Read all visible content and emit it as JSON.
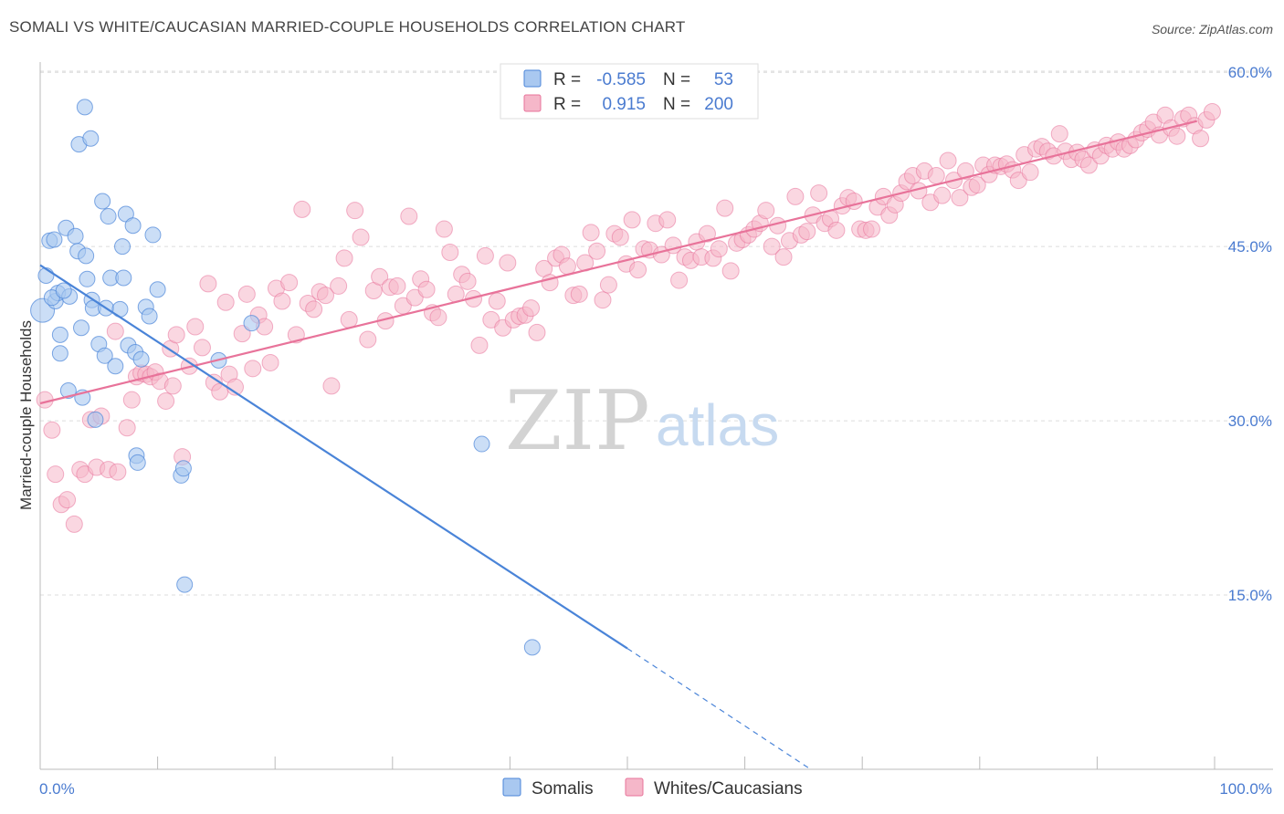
{
  "title": "SOMALI VS WHITE/CAUCASIAN MARRIED-COUPLE HOUSEHOLDS CORRELATION CHART",
  "source": "Source: ZipAtlas.com",
  "watermark": {
    "zip": "ZIP",
    "atlas": "atlas"
  },
  "legend_top": [
    {
      "r_label": "R = ",
      "r_value": "-0.585",
      "n_label": "N = ",
      "n_value": "53",
      "color": "#a9c8f0"
    },
    {
      "r_label": "R = ",
      "r_value": "0.915",
      "n_label": "N = ",
      "n_value": "200",
      "color": "#f5b7c9"
    }
  ],
  "legend_bottom": [
    {
      "label": "Somalis",
      "color": "#a9c8f0"
    },
    {
      "label": "Whites/Caucasians",
      "color": "#f5b7c9"
    }
  ],
  "chart_data": {
    "type": "scatter",
    "title": "SOMALI VS WHITE/CAUCASIAN MARRIED-COUPLE HOUSEHOLDS CORRELATION CHART",
    "xlabel": "",
    "ylabel": "Married-couple Households",
    "x_tick_labels": [
      "0.0%",
      "100.0%"
    ],
    "y_tick_labels": [
      "15.0%",
      "30.0%",
      "45.0%",
      "60.0%"
    ],
    "y_ticks": [
      15,
      30,
      45,
      60
    ],
    "xlim": [
      0,
      100
    ],
    "ylim": [
      0,
      62
    ],
    "grid": "horizontal dashed",
    "legend_placement": "top-center and bottom",
    "colors": {
      "somalis": "#4a84d8",
      "whites": "#e8739a"
    },
    "series": [
      {
        "name": "Somalis",
        "r": -0.585,
        "n": 53,
        "trend": {
          "x": [
            0,
            50
          ],
          "y": [
            43.4,
            10.4
          ],
          "dashed_extension_to": [
            65.6,
            0
          ]
        },
        "points": [
          [
            0.2,
            39.5
          ],
          [
            0.5,
            42.5
          ],
          [
            0.8,
            45.5
          ],
          [
            1.2,
            45.6
          ],
          [
            1.3,
            40.3
          ],
          [
            1.5,
            41.0
          ],
          [
            1.7,
            37.4
          ],
          [
            1.7,
            35.8
          ],
          [
            2.2,
            46.6
          ],
          [
            2.4,
            32.6
          ],
          [
            2.5,
            40.7
          ],
          [
            3.0,
            45.9
          ],
          [
            3.2,
            44.6
          ],
          [
            3.3,
            53.8
          ],
          [
            3.5,
            38.0
          ],
          [
            3.8,
            57.0
          ],
          [
            3.6,
            32.0
          ],
          [
            4.0,
            42.2
          ],
          [
            4.3,
            54.3
          ],
          [
            4.4,
            40.4
          ],
          [
            4.5,
            39.7
          ],
          [
            4.7,
            30.1
          ],
          [
            5.0,
            36.6
          ],
          [
            5.3,
            48.9
          ],
          [
            5.5,
            35.6
          ],
          [
            5.6,
            39.7
          ],
          [
            5.8,
            47.6
          ],
          [
            6.0,
            42.3
          ],
          [
            6.4,
            34.7
          ],
          [
            7.0,
            45.0
          ],
          [
            7.1,
            42.3
          ],
          [
            7.3,
            47.8
          ],
          [
            7.5,
            36.5
          ],
          [
            7.9,
            46.8
          ],
          [
            8.1,
            35.9
          ],
          [
            8.2,
            27.0
          ],
          [
            8.3,
            26.4
          ],
          [
            8.6,
            35.3
          ],
          [
            9.0,
            39.8
          ],
          [
            9.3,
            39.0
          ],
          [
            9.6,
            46.0
          ],
          [
            10.0,
            41.3
          ],
          [
            12.0,
            25.3
          ],
          [
            12.2,
            25.9
          ],
          [
            12.3,
            15.9
          ],
          [
            15.2,
            35.2
          ],
          [
            18.0,
            38.4
          ],
          [
            37.6,
            28.0
          ],
          [
            41.9,
            10.5
          ],
          [
            1.0,
            40.6
          ],
          [
            2.0,
            41.2
          ],
          [
            6.8,
            39.6
          ],
          [
            3.9,
            44.2
          ]
        ]
      },
      {
        "name": "Whites/Caucasians",
        "r": 0.915,
        "n": 200,
        "trend": {
          "x": [
            0,
            98.5
          ],
          "y": [
            31.5,
            55.8
          ]
        },
        "points": [
          [
            0.4,
            31.8
          ],
          [
            1.0,
            29.2
          ],
          [
            1.3,
            25.4
          ],
          [
            1.8,
            22.8
          ],
          [
            2.3,
            23.2
          ],
          [
            2.9,
            21.1
          ],
          [
            3.4,
            25.8
          ],
          [
            3.8,
            25.4
          ],
          [
            4.3,
            30.1
          ],
          [
            4.8,
            26.0
          ],
          [
            5.2,
            30.4
          ],
          [
            5.8,
            25.8
          ],
          [
            6.4,
            37.7
          ],
          [
            6.6,
            25.6
          ],
          [
            7.4,
            29.4
          ],
          [
            7.8,
            31.8
          ],
          [
            8.2,
            33.8
          ],
          [
            8.6,
            34.1
          ],
          [
            9.0,
            34.0
          ],
          [
            9.4,
            33.8
          ],
          [
            9.8,
            34.2
          ],
          [
            10.2,
            33.4
          ],
          [
            10.7,
            31.7
          ],
          [
            11.1,
            36.2
          ],
          [
            11.3,
            33.0
          ],
          [
            11.6,
            37.4
          ],
          [
            12.1,
            26.9
          ],
          [
            12.7,
            34.7
          ],
          [
            13.2,
            38.1
          ],
          [
            13.8,
            36.3
          ],
          [
            14.3,
            41.8
          ],
          [
            14.8,
            33.3
          ],
          [
            15.3,
            32.5
          ],
          [
            15.8,
            40.2
          ],
          [
            16.1,
            34.0
          ],
          [
            16.6,
            32.9
          ],
          [
            17.2,
            37.5
          ],
          [
            17.6,
            40.9
          ],
          [
            18.1,
            34.5
          ],
          [
            18.6,
            39.1
          ],
          [
            19.1,
            38.1
          ],
          [
            19.6,
            35.0
          ],
          [
            20.1,
            41.4
          ],
          [
            20.6,
            40.3
          ],
          [
            21.2,
            41.9
          ],
          [
            21.8,
            37.4
          ],
          [
            22.3,
            48.2
          ],
          [
            22.8,
            40.1
          ],
          [
            23.3,
            39.6
          ],
          [
            23.8,
            41.1
          ],
          [
            24.3,
            40.8
          ],
          [
            24.8,
            33.0
          ],
          [
            25.4,
            41.6
          ],
          [
            25.9,
            44.0
          ],
          [
            26.3,
            38.7
          ],
          [
            26.8,
            48.1
          ],
          [
            27.3,
            45.8
          ],
          [
            27.9,
            37.0
          ],
          [
            28.4,
            41.2
          ],
          [
            28.9,
            42.4
          ],
          [
            29.4,
            38.6
          ],
          [
            29.8,
            41.5
          ],
          [
            30.4,
            41.6
          ],
          [
            30.9,
            39.9
          ],
          [
            31.4,
            47.6
          ],
          [
            31.9,
            40.6
          ],
          [
            32.4,
            42.2
          ],
          [
            32.9,
            41.3
          ],
          [
            33.4,
            39.3
          ],
          [
            33.9,
            38.9
          ],
          [
            34.4,
            46.5
          ],
          [
            34.9,
            44.5
          ],
          [
            35.4,
            40.9
          ],
          [
            35.9,
            42.6
          ],
          [
            36.4,
            42.0
          ],
          [
            36.9,
            40.5
          ],
          [
            37.4,
            36.5
          ],
          [
            37.9,
            44.2
          ],
          [
            38.4,
            38.7
          ],
          [
            38.9,
            40.3
          ],
          [
            39.4,
            38.0
          ],
          [
            39.8,
            43.6
          ],
          [
            40.3,
            38.7
          ],
          [
            40.8,
            39.0
          ],
          [
            41.3,
            39.1
          ],
          [
            41.8,
            39.7
          ],
          [
            42.3,
            37.6
          ],
          [
            42.9,
            43.1
          ],
          [
            43.4,
            41.9
          ],
          [
            43.9,
            44.0
          ],
          [
            44.4,
            44.3
          ],
          [
            44.9,
            43.3
          ],
          [
            45.4,
            40.8
          ],
          [
            45.9,
            40.9
          ],
          [
            46.4,
            43.6
          ],
          [
            46.9,
            46.2
          ],
          [
            47.4,
            44.6
          ],
          [
            47.9,
            40.4
          ],
          [
            48.4,
            41.7
          ],
          [
            48.9,
            46.1
          ],
          [
            49.4,
            45.8
          ],
          [
            49.9,
            43.5
          ],
          [
            50.4,
            47.3
          ],
          [
            50.9,
            43.0
          ],
          [
            51.4,
            44.8
          ],
          [
            51.9,
            44.7
          ],
          [
            52.4,
            47.0
          ],
          [
            52.9,
            44.3
          ],
          [
            53.4,
            47.3
          ],
          [
            53.9,
            45.1
          ],
          [
            54.4,
            42.1
          ],
          [
            54.9,
            44.1
          ],
          [
            55.4,
            43.8
          ],
          [
            55.9,
            45.4
          ],
          [
            56.3,
            44.1
          ],
          [
            56.8,
            46.1
          ],
          [
            57.3,
            44.0
          ],
          [
            57.8,
            44.8
          ],
          [
            58.3,
            48.3
          ],
          [
            58.8,
            42.9
          ],
          [
            59.3,
            45.3
          ],
          [
            59.8,
            45.6
          ],
          [
            60.3,
            46.0
          ],
          [
            60.8,
            46.5
          ],
          [
            61.3,
            47.0
          ],
          [
            61.8,
            48.1
          ],
          [
            62.3,
            45.0
          ],
          [
            62.8,
            46.8
          ],
          [
            63.3,
            44.1
          ],
          [
            63.8,
            45.5
          ],
          [
            64.3,
            49.3
          ],
          [
            64.8,
            46.0
          ],
          [
            65.3,
            46.3
          ],
          [
            65.8,
            47.7
          ],
          [
            66.3,
            49.6
          ],
          [
            66.8,
            47.0
          ],
          [
            67.3,
            47.4
          ],
          [
            67.8,
            46.4
          ],
          [
            68.3,
            48.5
          ],
          [
            68.8,
            49.2
          ],
          [
            69.3,
            48.9
          ],
          [
            69.8,
            46.5
          ],
          [
            70.3,
            46.4
          ],
          [
            70.8,
            46.5
          ],
          [
            71.3,
            48.4
          ],
          [
            71.8,
            49.3
          ],
          [
            72.3,
            47.7
          ],
          [
            72.8,
            48.6
          ],
          [
            73.3,
            49.6
          ],
          [
            73.8,
            50.6
          ],
          [
            74.3,
            51.1
          ],
          [
            74.8,
            49.8
          ],
          [
            75.3,
            51.5
          ],
          [
            75.8,
            48.8
          ],
          [
            76.3,
            51.1
          ],
          [
            76.8,
            49.4
          ],
          [
            77.3,
            52.4
          ],
          [
            77.8,
            50.7
          ],
          [
            78.3,
            49.2
          ],
          [
            78.8,
            51.5
          ],
          [
            79.3,
            50.1
          ],
          [
            79.8,
            50.3
          ],
          [
            80.3,
            52.0
          ],
          [
            80.8,
            51.2
          ],
          [
            81.3,
            52.0
          ],
          [
            81.8,
            51.9
          ],
          [
            82.3,
            52.1
          ],
          [
            82.8,
            51.6
          ],
          [
            83.3,
            50.7
          ],
          [
            83.8,
            52.9
          ],
          [
            84.3,
            51.4
          ],
          [
            84.8,
            53.4
          ],
          [
            85.3,
            53.6
          ],
          [
            85.8,
            53.2
          ],
          [
            86.3,
            52.8
          ],
          [
            86.8,
            54.7
          ],
          [
            87.3,
            53.2
          ],
          [
            87.8,
            52.5
          ],
          [
            88.3,
            53.1
          ],
          [
            88.8,
            52.5
          ],
          [
            89.3,
            52.0
          ],
          [
            89.8,
            53.3
          ],
          [
            90.3,
            52.8
          ],
          [
            90.8,
            53.7
          ],
          [
            91.3,
            53.4
          ],
          [
            91.8,
            54.0
          ],
          [
            92.3,
            53.4
          ],
          [
            92.8,
            53.7
          ],
          [
            93.3,
            54.2
          ],
          [
            93.8,
            54.8
          ],
          [
            94.3,
            55.1
          ],
          [
            94.8,
            55.7
          ],
          [
            95.3,
            54.6
          ],
          [
            95.8,
            56.3
          ],
          [
            96.3,
            55.2
          ],
          [
            96.8,
            54.5
          ],
          [
            97.3,
            56.0
          ],
          [
            97.8,
            56.3
          ],
          [
            98.3,
            55.4
          ],
          [
            98.8,
            54.3
          ],
          [
            99.3,
            55.9
          ],
          [
            99.8,
            56.6
          ]
        ]
      }
    ]
  }
}
